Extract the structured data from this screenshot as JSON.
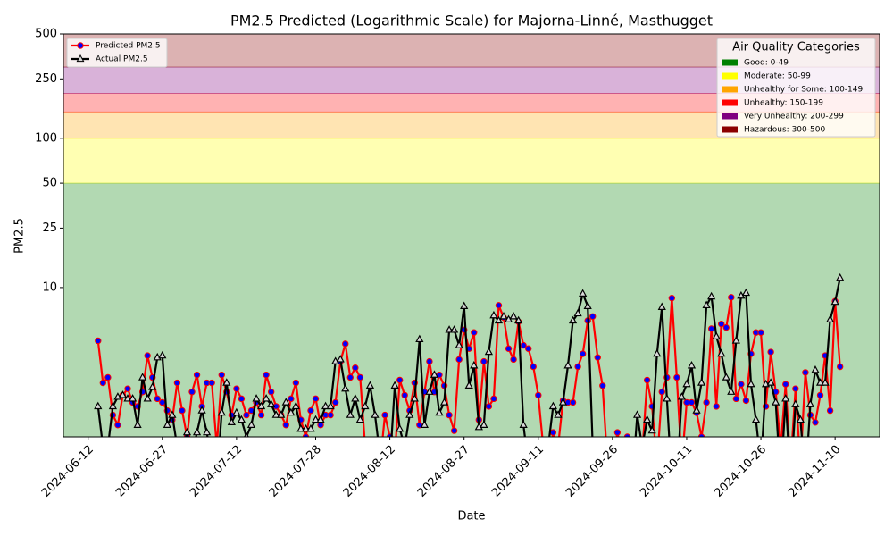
{
  "chart_data": {
    "type": "line",
    "title": "PM2.5 Predicted (Logarithmic Scale) for Majorna-Linné, Masthugget",
    "x_label": "Date",
    "y_label": "PM2.5",
    "log_scale": true,
    "xlim": [
      "2024-06-07",
      "2024-11-19"
    ],
    "xticks": [
      "2024-06-12",
      "2024-06-27",
      "2024-07-12",
      "2024-07-28",
      "2024-08-12",
      "2024-08-27",
      "2024-09-11",
      "2024-09-26",
      "2024-10-11",
      "2024-10-26",
      "2024-11-10"
    ],
    "ylim": [
      1,
      500
    ],
    "yticks": [
      10,
      25,
      50,
      100,
      250,
      500
    ],
    "legend": "upper left",
    "x": [
      "2024-06-14",
      "2024-06-15",
      "2024-06-16",
      "2024-06-17",
      "2024-06-18",
      "2024-06-19",
      "2024-06-20",
      "2024-06-21",
      "2024-06-22",
      "2024-06-23",
      "2024-06-24",
      "2024-06-25",
      "2024-06-26",
      "2024-06-27",
      "2024-06-28",
      "2024-06-29",
      "2024-06-30",
      "2024-07-01",
      "2024-07-02",
      "2024-07-03",
      "2024-07-04",
      "2024-07-05",
      "2024-07-06",
      "2024-07-07",
      "2024-07-08",
      "2024-07-09",
      "2024-07-10",
      "2024-07-11",
      "2024-07-12",
      "2024-07-13",
      "2024-07-14",
      "2024-07-15",
      "2024-07-16",
      "2024-07-17",
      "2024-07-18",
      "2024-07-19",
      "2024-07-20",
      "2024-07-21",
      "2024-07-22",
      "2024-07-23",
      "2024-07-24",
      "2024-07-25",
      "2024-07-26",
      "2024-07-27",
      "2024-07-28",
      "2024-07-29",
      "2024-07-30",
      "2024-07-31",
      "2024-08-01",
      "2024-08-02",
      "2024-08-03",
      "2024-08-04",
      "2024-08-05",
      "2024-08-06",
      "2024-08-07",
      "2024-08-08",
      "2024-08-09",
      "2024-08-10",
      "2024-08-11",
      "2024-08-12",
      "2024-08-13",
      "2024-08-14",
      "2024-08-15",
      "2024-08-16",
      "2024-08-17",
      "2024-08-18",
      "2024-08-19",
      "2024-08-20",
      "2024-08-21",
      "2024-08-22",
      "2024-08-23",
      "2024-08-24",
      "2024-08-25",
      "2024-08-26",
      "2024-08-27",
      "2024-08-28",
      "2024-08-29",
      "2024-08-30",
      "2024-08-31",
      "2024-09-01",
      "2024-09-02",
      "2024-09-03",
      "2024-09-04",
      "2024-09-05",
      "2024-09-06",
      "2024-09-07",
      "2024-09-08",
      "2024-09-09",
      "2024-09-10",
      "2024-09-11",
      "2024-09-12",
      "2024-09-13",
      "2024-09-14",
      "2024-09-15",
      "2024-09-16",
      "2024-09-17",
      "2024-09-18",
      "2024-09-19",
      "2024-09-20",
      "2024-09-21",
      "2024-09-22",
      "2024-09-23",
      "2024-09-24",
      "2024-09-25",
      "2024-09-26",
      "2024-09-27",
      "2024-09-28",
      "2024-09-29",
      "2024-09-30",
      "2024-10-01",
      "2024-10-02",
      "2024-10-03",
      "2024-10-04",
      "2024-10-05",
      "2024-10-06",
      "2024-10-07",
      "2024-10-08",
      "2024-10-09",
      "2024-10-10",
      "2024-10-11",
      "2024-10-12",
      "2024-10-13",
      "2024-10-14",
      "2024-10-15",
      "2024-10-16",
      "2024-10-17",
      "2024-10-18",
      "2024-10-19",
      "2024-10-20",
      "2024-10-21",
      "2024-10-22",
      "2024-10-23",
      "2024-10-24",
      "2024-10-25",
      "2024-10-26",
      "2024-10-27",
      "2024-10-28",
      "2024-10-29",
      "2024-10-30",
      "2024-10-31",
      "2024-11-01",
      "2024-11-02",
      "2024-11-03",
      "2024-11-04",
      "2024-11-05",
      "2024-11-06",
      "2024-11-07",
      "2024-11-08",
      "2024-11-09",
      "2024-11-10",
      "2024-11-11"
    ],
    "series": [
      {
        "name": "Predicted PM2.5",
        "color": "red",
        "marker": "circle",
        "marker_color": "blue",
        "values": [
          4.4,
          2.3,
          2.5,
          1.4,
          1.2,
          1.9,
          2.1,
          1.7,
          1.6,
          2.0,
          3.5,
          2.5,
          1.8,
          1.7,
          1.5,
          1.3,
          2.3,
          1.5,
          1.0,
          2.0,
          2.6,
          1.6,
          2.3,
          2.3,
          0.86,
          2.6,
          2.0,
          1.4,
          2.1,
          1.8,
          1.4,
          1.5,
          1.7,
          1.4,
          2.6,
          2.0,
          1.6,
          1.4,
          1.2,
          1.8,
          2.3,
          1.3,
          1.0,
          1.5,
          1.8,
          1.2,
          1.4,
          1.4,
          1.7,
          3.2,
          4.2,
          2.5,
          2.9,
          2.5,
          0.86,
          0.86,
          0.65,
          0.65,
          1.4,
          1.0,
          0.75,
          2.4,
          1.9,
          1.5,
          2.3,
          1.2,
          2.0,
          3.2,
          2.0,
          2.6,
          2.2,
          1.4,
          1.1,
          3.3,
          5.2,
          3.9,
          5.0,
          1.3,
          3.2,
          1.6,
          1.8,
          7.6,
          6.3,
          3.9,
          3.3,
          5.9,
          4.1,
          3.9,
          2.95,
          1.9,
          0.86,
          0.65,
          1.07,
          0.86,
          1.75,
          1.7,
          1.7,
          2.95,
          3.6,
          6.0,
          6.4,
          3.4,
          2.2,
          0.65,
          0.65,
          1.07,
          0.75,
          1.0,
          0.65,
          0.65,
          0.75,
          2.4,
          1.6,
          0.65,
          2.0,
          2.5,
          8.5,
          2.5,
          0.65,
          1.7,
          1.7,
          1.45,
          1.0,
          1.7,
          5.3,
          1.6,
          5.7,
          5.4,
          8.6,
          1.8,
          2.25,
          1.75,
          3.6,
          5.0,
          5.0,
          1.6,
          3.7,
          2.0,
          0.86,
          2.25,
          0.65,
          2.1,
          0.65,
          2.7,
          1.4,
          1.25,
          1.9,
          3.5,
          1.5,
          8.1,
          2.95
        ]
      },
      {
        "name": "Actual PM2.5",
        "color": "black",
        "marker": "triangle",
        "marker_color": "#d8d8d8",
        "values": [
          1.6,
          0.86,
          0.86,
          1.6,
          1.85,
          1.9,
          1.8,
          1.8,
          1.2,
          2.5,
          1.8,
          2.15,
          3.4,
          3.5,
          1.2,
          1.4,
          0.86,
          0.75,
          1.07,
          0.75,
          1.07,
          1.5,
          1.07,
          0.65,
          0.5,
          1.45,
          2.3,
          1.25,
          1.45,
          1.3,
          1.0,
          1.2,
          1.8,
          1.6,
          1.8,
          1.65,
          1.4,
          1.4,
          1.7,
          1.45,
          1.6,
          1.13,
          1.13,
          1.13,
          1.3,
          1.3,
          1.6,
          1.6,
          3.2,
          3.3,
          2.1,
          1.4,
          1.8,
          1.3,
          1.6,
          2.2,
          1.4,
          0.75,
          0.65,
          0.65,
          2.2,
          1.13,
          0.86,
          1.4,
          1.8,
          4.5,
          1.2,
          2.0,
          2.6,
          1.45,
          1.7,
          5.2,
          5.2,
          4.1,
          7.5,
          2.2,
          3.0,
          1.16,
          1.2,
          3.7,
          6.5,
          6.0,
          6.4,
          6.1,
          6.4,
          6.0,
          1.2,
          0.65,
          0.5,
          0.5,
          0.65,
          0.86,
          1.6,
          1.4,
          1.7,
          3.0,
          6.0,
          6.7,
          9.1,
          7.5,
          0.86,
          0.5,
          0.5,
          0.5,
          0.5,
          0.5,
          0.5,
          0.5,
          0.5,
          1.4,
          0.86,
          1.3,
          1.1,
          3.6,
          7.4,
          1.8,
          0.5,
          0.5,
          1.85,
          2.25,
          3.0,
          1.5,
          2.3,
          7.6,
          8.7,
          4.7,
          3.6,
          2.5,
          2.0,
          4.4,
          8.8,
          9.2,
          2.25,
          1.3,
          0.65,
          2.25,
          2.3,
          1.7,
          0.5,
          1.8,
          0.5,
          1.65,
          1.3,
          0.5,
          1.65,
          2.8,
          2.3,
          2.3,
          6.1,
          8.0,
          11.6
        ]
      }
    ],
    "bands": {
      "title": "Air Quality Categories",
      "legend": "upper right",
      "opacity": 0.3,
      "items": [
        {
          "name": "Good: 0-49",
          "color": "green",
          "range": [
            0,
            50
          ]
        },
        {
          "name": "Moderate: 50-99",
          "color": "yellow",
          "range": [
            50,
            100
          ]
        },
        {
          "name": "Unhealthy for Some: 100-149",
          "color": "orange",
          "range": [
            100,
            150
          ]
        },
        {
          "name": "Unhealthy: 150-199",
          "color": "red",
          "range": [
            150,
            200
          ]
        },
        {
          "name": "Very Unhealthy: 200-299",
          "color": "purple",
          "range": [
            200,
            300
          ]
        },
        {
          "name": "Hazardous: 300-500",
          "color": "darkred",
          "range": [
            300,
            500
          ]
        }
      ]
    }
  }
}
